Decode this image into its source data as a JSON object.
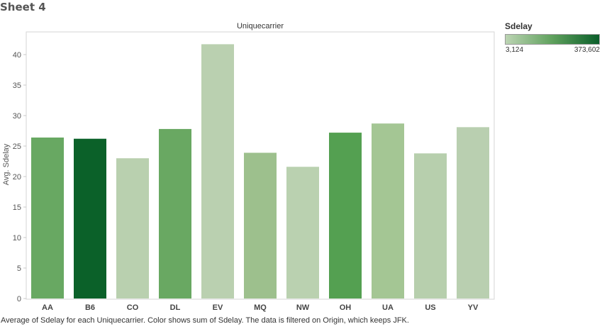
{
  "sheet": {
    "title": "Sheet 4",
    "caption": "Average of Sdelay for each Uniquecarrier.  Color shows sum of Sdelay. The data is filtered on Origin, which keeps JFK."
  },
  "legend": {
    "title": "Sdelay",
    "min_label": "3,124",
    "max_label": "373,602",
    "min_value": 3124,
    "max_value": 373602,
    "color_low": "#bcd4b3",
    "color_high": "#0a5e2a"
  },
  "chart_data": {
    "type": "bar",
    "title": "Uniquecarrier",
    "xlabel": "",
    "ylabel": "Avg. Sdelay",
    "categories": [
      "AA",
      "B6",
      "CO",
      "DL",
      "EV",
      "MQ",
      "NW",
      "OH",
      "UA",
      "US",
      "YV"
    ],
    "values": [
      26.4,
      26.2,
      23.0,
      27.8,
      41.7,
      23.9,
      21.6,
      27.2,
      28.7,
      23.8,
      28.1
    ],
    "colors": [
      "#68a862",
      "#0b6129",
      "#b9d0af",
      "#69a862",
      "#bad0b0",
      "#9dc08d",
      "#bad1b0",
      "#54a051",
      "#a4c694",
      "#b7cfad",
      "#b9cfb0"
    ],
    "yticks": [
      0,
      5,
      10,
      15,
      20,
      25,
      30,
      35,
      40
    ],
    "ylim": [
      0,
      43.4
    ],
    "grid": false,
    "legend_position": "right"
  }
}
